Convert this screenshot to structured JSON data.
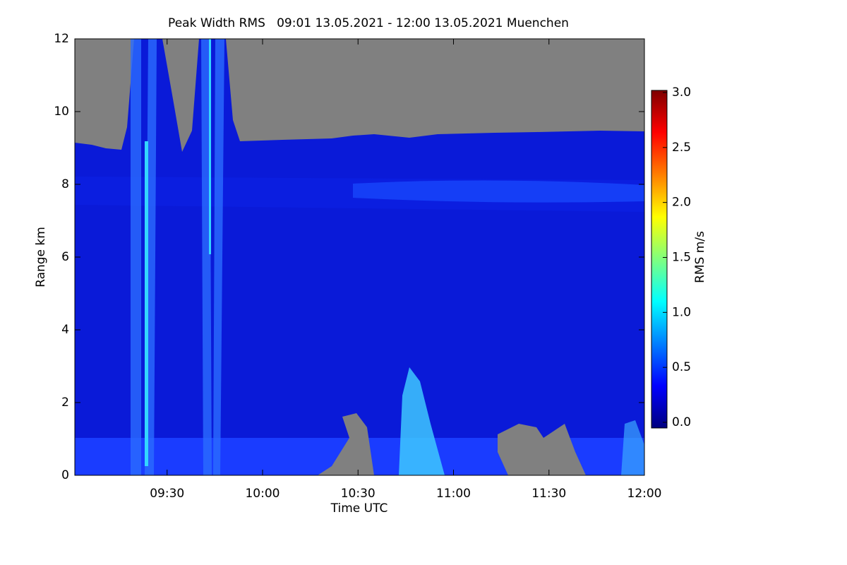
{
  "chart_data": {
    "type": "heatmap",
    "title": "Peak Width RMS   09:01 13.05.2021 - 12:00 13.05.2021 Muenchen",
    "x_label": "Time UTC",
    "y_label": "Range km",
    "xlim": [
      "09:01",
      "12:00"
    ],
    "xticks": [
      "09:30",
      "10:00",
      "10:30",
      "11:00",
      "11:30",
      "12:00"
    ],
    "ylim": [
      0,
      12
    ],
    "yticks": [
      0,
      2,
      4,
      6,
      8,
      10,
      12
    ],
    "colorbar_label": "RMS m/s",
    "zlim": [
      0,
      3
    ],
    "zticks": [
      {
        "value": 0,
        "label": "0.0"
      },
      {
        "value": 0.5,
        "label": "0.5"
      },
      {
        "value": 1,
        "label": "1.0"
      },
      {
        "value": 1.5,
        "label": "1.5"
      },
      {
        "value": 2,
        "label": "2.0"
      },
      {
        "value": 2.5,
        "label": "2.5"
      },
      {
        "value": 3,
        "label": "3.0"
      }
    ],
    "colormap": [
      "#00007f",
      "#0000ff",
      "#007fff",
      "#00ffff",
      "#7fff7f",
      "#ffff00",
      "#ff7f00",
      "#ff0000",
      "#7f0000"
    ],
    "missing_color": "#808080"
  }
}
